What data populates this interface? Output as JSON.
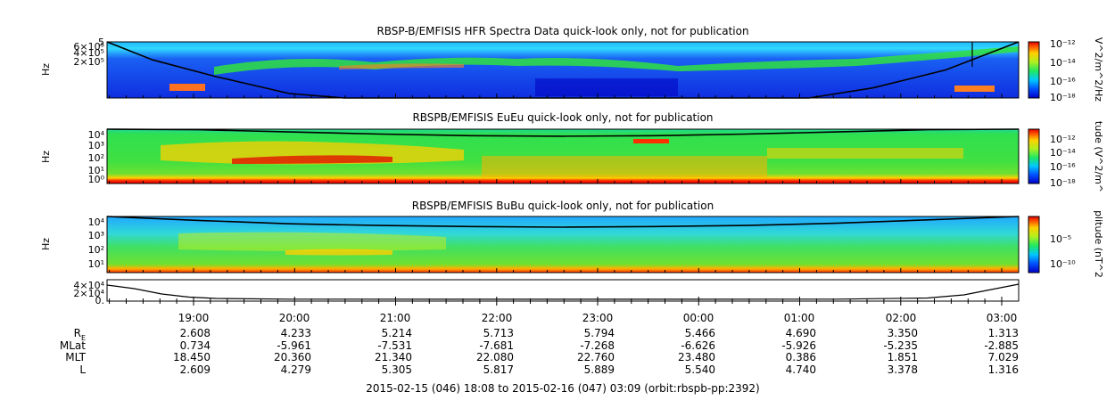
{
  "chart_data": [
    {
      "type": "heatmap",
      "title": "RBSP-B/EMFISIS  HFR Spectra Data quick-look only, not for publication",
      "ylabel": "Hz",
      "y_ticks": [
        "5",
        "6×10⁵",
        "4×10⁵",
        "2×10⁵"
      ],
      "colorbar_label": "V^2/m^2/Hz",
      "colorbar_ticks": [
        "10⁻¹²",
        "10⁻¹⁴",
        "10⁻¹⁶",
        "10⁻¹⁸"
      ],
      "colorbar_range_exp": [
        -18,
        -12
      ],
      "background_color": "#1a3cf0",
      "curve": [
        [
          0.0,
          0.0
        ],
        [
          0.05,
          0.32
        ],
        [
          0.12,
          0.62
        ],
        [
          0.2,
          0.92
        ],
        [
          0.26,
          1.0
        ],
        [
          0.77,
          1.0
        ],
        [
          0.84,
          0.82
        ],
        [
          0.92,
          0.5
        ],
        [
          1.0,
          0.0
        ]
      ]
    },
    {
      "type": "heatmap",
      "title": "RBSPB/EMFISIS  EuEu quick-look only, not for publication",
      "ylabel": "Hz",
      "y_ticks": [
        "10⁴",
        "10³",
        "10²",
        "10¹",
        "10⁰"
      ],
      "colorbar_label": "tude (V^2/m^",
      "colorbar_ticks": [
        "10⁻¹²",
        "10⁻¹⁴",
        "10⁻¹⁶",
        "10⁻¹⁸"
      ],
      "colorbar_range_exp": [
        -18,
        -12
      ],
      "background_color": "#2ee04a",
      "curve": [
        [
          0.0,
          0.0
        ],
        [
          0.1,
          0.01
        ],
        [
          0.2,
          0.05
        ],
        [
          0.3,
          0.09
        ],
        [
          0.4,
          0.12
        ],
        [
          0.5,
          0.13
        ],
        [
          0.6,
          0.12
        ],
        [
          0.7,
          0.09
        ],
        [
          0.8,
          0.05
        ],
        [
          0.9,
          0.01
        ],
        [
          1.0,
          0.0
        ]
      ]
    },
    {
      "type": "heatmap",
      "title": "RBSPB/EMFISIS  BuBu quick-look only, not for publication",
      "ylabel": "Hz",
      "y_ticks": [
        "10⁴",
        "10³",
        "10²",
        "10¹"
      ],
      "colorbar_label": "plitude (nT^2",
      "colorbar_ticks": [
        "10⁻⁵",
        "10⁻¹⁰"
      ],
      "colorbar_range_exp": [
        -12,
        -2
      ],
      "background_color": "#3fe05a",
      "curve": [
        [
          0.0,
          0.0
        ],
        [
          0.1,
          0.07
        ],
        [
          0.2,
          0.13
        ],
        [
          0.3,
          0.16
        ],
        [
          0.4,
          0.18
        ],
        [
          0.5,
          0.19
        ],
        [
          0.6,
          0.18
        ],
        [
          0.7,
          0.16
        ],
        [
          0.8,
          0.12
        ],
        [
          0.9,
          0.06
        ],
        [
          1.0,
          0.0
        ]
      ]
    },
    {
      "type": "line",
      "y_ticks": [
        "4×10⁴",
        "2×10⁴",
        "0."
      ],
      "ylim": [
        0,
        40000
      ],
      "x": [
        0.0,
        0.03,
        0.06,
        0.09,
        0.12,
        0.2,
        0.5,
        0.8,
        0.9,
        0.94,
        0.97,
        1.0
      ],
      "values": [
        32000,
        24000,
        12000,
        5000,
        2000,
        400,
        300,
        400,
        3000,
        10000,
        22000,
        34000
      ]
    }
  ],
  "x_ticks": [
    "19:00",
    "20:00",
    "21:00",
    "22:00",
    "23:00",
    "00:00",
    "01:00",
    "02:00",
    "03:00"
  ],
  "ephemeris": {
    "labels": [
      "R",
      "MLat",
      "MLT",
      "L"
    ],
    "r_subscript": "E",
    "rows": [
      [
        "2.608",
        "4.233",
        "5.214",
        "5.713",
        "5.794",
        "5.466",
        "4.690",
        "3.350",
        "1.313"
      ],
      [
        "0.734",
        "-5.961",
        "-7.531",
        "-7.681",
        "-7.268",
        "-6.626",
        "-5.926",
        "-5.235",
        "-2.885"
      ],
      [
        "18.450",
        "20.360",
        "21.340",
        "22.080",
        "22.760",
        "23.480",
        "0.386",
        "1.851",
        "7.029"
      ],
      [
        "2.609",
        "4.279",
        "5.305",
        "5.817",
        "5.889",
        "5.540",
        "4.740",
        "3.378",
        "1.316"
      ]
    ]
  },
  "footer": "2015-02-15 (046) 18:08 to 2015-02-16 (047) 03:09 (orbit:rbspb-pp:2392)"
}
